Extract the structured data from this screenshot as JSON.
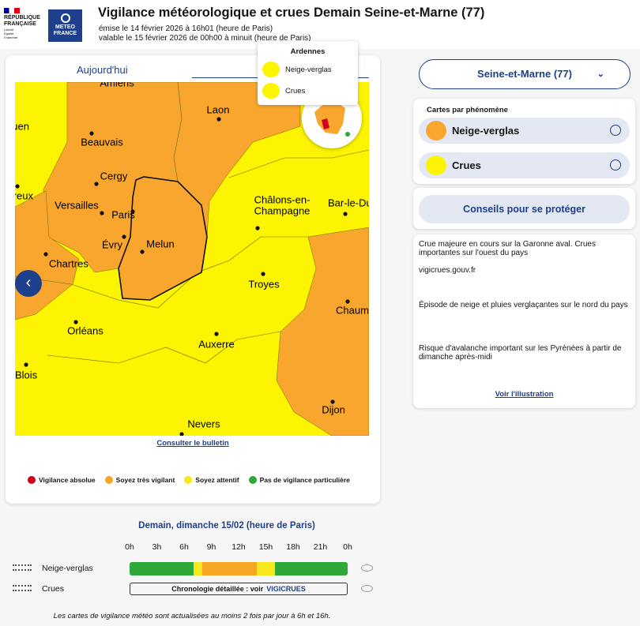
{
  "header": {
    "logo_republique": "RÉPUBLIQUE FRANÇAISE",
    "logo_motto": "Liberté Égalité Fraternité",
    "logo_meteo": "METEO FRANCE",
    "title": "Vigilance météorologique et crues Demain Seine-et-Marne (77)",
    "issued": "émise le 14 février 2026 à 16h01 (heure de Paris)",
    "valid": "valable le 15 février 2026 de 00h00 à minuit (heure de Paris)"
  },
  "map_panel": {
    "tabs": [
      "Aujourd'hui"
    ],
    "cities": [
      {
        "name": "Amiens"
      },
      {
        "name": "Laon"
      },
      {
        "name": "Rouen"
      },
      {
        "name": "Beauvais"
      },
      {
        "name": "Cergy"
      },
      {
        "name": "Évreux"
      },
      {
        "name": "Versailles"
      },
      {
        "name": "Paris"
      },
      {
        "name": "Évry"
      },
      {
        "name": "Melun"
      },
      {
        "lines": [
          "Châlons-en-",
          "Champagne"
        ]
      },
      {
        "name": "Bar-le-Duc"
      },
      {
        "name": "Chartres"
      },
      {
        "name": "Troyes"
      },
      {
        "name": "Orléans"
      },
      {
        "name": "Chaumont"
      },
      {
        "name": "Auxerre"
      },
      {
        "name": "Blois"
      },
      {
        "name": "Dijon"
      },
      {
        "name": "Nevers"
      }
    ],
    "popup": {
      "title": "Ardennes",
      "items": [
        "Neige-verglas",
        "Crues"
      ]
    },
    "bulletin_link": "Consulter le bulletin",
    "legend": [
      {
        "label": "Vigilance absolue",
        "color": "#d0021b"
      },
      {
        "label": "Soyez très vigilant",
        "color": "#f5a623"
      },
      {
        "label": "Soyez attentif",
        "color": "#f8e71c"
      },
      {
        "label": "Pas de vigilance particulière",
        "color": "#2ea836"
      }
    ]
  },
  "sidebar": {
    "department": "Seine-et-Marne (77)",
    "phenomena_title": "Cartes par phénomène",
    "phenomena": [
      "Neige-verglas",
      "Crues"
    ],
    "advice_button": "Conseils pour se protéger",
    "info": [
      "Crue majeure en cours sur la Garonne aval. Crues importantes sur l'ouest du pays",
      "vigicrues.gouv.fr",
      "Épisode de neige et pluies verglaçantes sur le nord du pays",
      "Risque d'avalanche important sur les Pyrénées à partir de dimanche après-midi"
    ],
    "illustration_link": "Voir l'illustration"
  },
  "timeline": {
    "title": "Demain, dimanche 15/02 (heure de Paris)",
    "xlim": [
      0,
      24
    ],
    "xticks": [
      {
        "value": 0,
        "label": "0h"
      },
      {
        "value": 3,
        "label": "3h"
      },
      {
        "value": 6,
        "label": "6h"
      },
      {
        "value": 9,
        "label": "9h"
      },
      {
        "value": 12,
        "label": "12h"
      },
      {
        "value": 15,
        "label": "15h"
      },
      {
        "value": 18,
        "label": "18h"
      },
      {
        "value": 21,
        "label": "21h"
      },
      {
        "value": 24,
        "label": "0h"
      }
    ],
    "rows": [
      {
        "name": "Neige-verglas",
        "segments": [
          {
            "start": 0,
            "end": 7,
            "color": "#2ea836"
          },
          {
            "start": 7,
            "end": 8,
            "color": "#f8e71c"
          },
          {
            "start": 8,
            "end": 14,
            "color": "#f5a623"
          },
          {
            "start": 14,
            "end": 16,
            "color": "#f8e71c"
          },
          {
            "start": 16,
            "end": 24,
            "color": "#2ea836"
          }
        ]
      },
      {
        "name": "Crues",
        "note": "Chronologie détaillée : voir",
        "link": "VIGICRUES"
      }
    ]
  },
  "footer_note": "Les cartes de vigilance météo sont actualisées au moins 2 fois par jour à 6h et 16h."
}
